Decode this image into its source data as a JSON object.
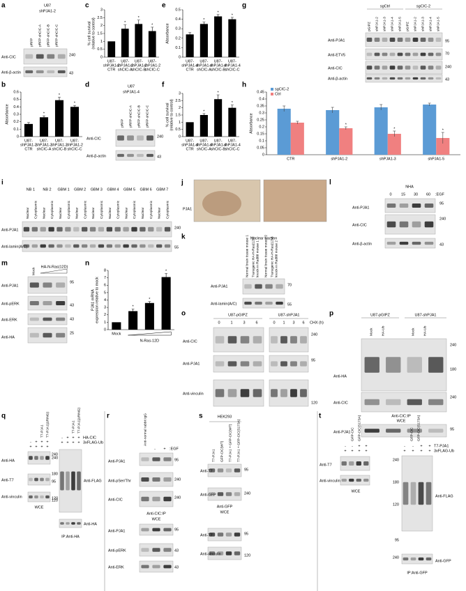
{
  "panels": {
    "a": {
      "labels": [
        "a",
        "U87",
        "shPJA1-2",
        "pRFP",
        "pRFP-shCIC-A",
        "pRFP-shCIC-B",
        "pRFP-shCIC-C",
        "Anti-CIC",
        "240",
        "Anti-β-actin",
        "43"
      ]
    },
    "b": {
      "labels": [
        "b"
      ],
      "chart": {
        "type": "bar",
        "ylabel": [
          "Absorbance"
        ],
        "categories": [
          [
            "U87-",
            "shPJA1-2",
            "CTR"
          ],
          [
            "U87-",
            "shPJA1-2",
            "shCIC-A"
          ],
          [
            "U87-",
            "shPJA1-2",
            "shCIC-B"
          ],
          [
            "U87-",
            "shPJA1-2",
            "shCIC-C"
          ]
        ],
        "values": [
          0.17,
          0.26,
          0.49,
          0.4
        ],
        "errors": [
          0.02,
          0.02,
          0.04,
          0.02
        ],
        "marks": [
          null,
          "*",
          "*",
          "*"
        ],
        "color": "#000000",
        "ylim": [
          0,
          0.6
        ],
        "yticks": [
          0,
          0.1,
          0.2,
          0.3,
          0.4,
          0.5,
          0.6
        ]
      }
    },
    "c": {
      "labels": [
        "c"
      ],
      "chart": {
        "type": "bar",
        "ylabel": [
          "% cell survival",
          "(relative to control)"
        ],
        "categories": [
          [
            "U87-",
            "shPJA1-2",
            "CTR"
          ],
          [
            "U87-",
            "shPJA1-2",
            "shCIC-A"
          ],
          [
            "U87-",
            "shPJA1-2",
            "shCIC-B"
          ],
          [
            "U87-",
            "shPJA1-2",
            "shCIC-C"
          ]
        ],
        "values": [
          1.0,
          1.8,
          2.1,
          1.65
        ],
        "errors": [
          null,
          0.25,
          0.25,
          0.25
        ],
        "marks": [
          null,
          "*",
          "*",
          "*"
        ],
        "color": "#000000",
        "ylim": [
          0,
          3
        ],
        "yticks": [
          0,
          0.5,
          1,
          1.5,
          2,
          2.5,
          3
        ]
      }
    },
    "d": {
      "labels": [
        "d",
        "U87",
        "shPJA1-4",
        "pRFP",
        "pRFP-shCIC-A",
        "pRFP-shCIC-B",
        "pRFP-shCIC-C",
        "Anti-CIC",
        "240",
        "Anti-β-actin",
        "43"
      ]
    },
    "e": {
      "labels": [
        "e"
      ],
      "chart": {
        "type": "bar",
        "ylabel": [
          "Absorbance"
        ],
        "categories": [
          [
            "U87-",
            "shPJA1-4",
            "CTR"
          ],
          [
            "U87-",
            "shPJA1-4",
            "shCIC-A"
          ],
          [
            "U87-",
            "shPJA1-4",
            "shCIC-B"
          ],
          [
            "U87-",
            "shPJA1-4",
            "shCIC-C"
          ]
        ],
        "values": [
          0.24,
          0.35,
          0.43,
          0.4
        ],
        "errors": [
          0.02,
          0.02,
          0.02,
          0.02
        ],
        "marks": [
          null,
          "*",
          "*",
          "*"
        ],
        "color": "#000000",
        "ylim": [
          0,
          0.5
        ],
        "yticks": [
          0,
          0.1,
          0.2,
          0.3,
          0.4,
          0.5
        ]
      }
    },
    "f": {
      "labels": [
        "f"
      ],
      "chart": {
        "type": "bar",
        "ylabel": [
          "% cell survival",
          "(relative to control)"
        ],
        "categories": [
          [
            "U87-",
            "shPJA1-4",
            "CTR"
          ],
          [
            "U87-",
            "shPJA1-4",
            "shCIC-A"
          ],
          [
            "U87-",
            "shPJA1-4",
            "shCIC-B"
          ],
          [
            "U87-",
            "shPJA1-4",
            "shCIC-C"
          ]
        ],
        "values": [
          1.0,
          1.5,
          2.6,
          2.0
        ],
        "errors": [
          null,
          0.1,
          0.3,
          0.2
        ],
        "marks": [
          null,
          "*",
          "*",
          "*"
        ],
        "color": "#000000",
        "ylim": [
          0,
          3
        ],
        "yticks": [
          0,
          0.5,
          1,
          1.5,
          2,
          2.5,
          3
        ]
      }
    },
    "g": {
      "labels": [
        "g",
        "sgCtrl",
        "sgCIC-2",
        "pGIPZ",
        "shPJA1-2",
        "shPJA1-3",
        "shPJA1-4",
        "shPJA1-5",
        "pGIPZ",
        "shPJA1-2",
        "shPJA1-3",
        "shPJA1-4",
        "shPJA1-5",
        "Anti-PJA1",
        "95",
        "Anti-ETV5",
        "70",
        "Anti-CIC",
        "240",
        "Anti-β-actin",
        "43"
      ]
    },
    "h": {
      "labels": [
        "h"
      ],
      "chart": {
        "type": "grouped-bar",
        "ylabel": [
          "Absorbance"
        ],
        "categories": [
          "CTR",
          "shPJA1-2",
          "shPJA1-3",
          "shPJA1-5"
        ],
        "series": [
          {
            "name": "sgCIC-2",
            "color": "#5b9bd5",
            "values": [
              0.33,
              0.32,
              0.34,
              0.36
            ],
            "errors": [
              0.02,
              0.02,
              0.02,
              0.01
            ]
          },
          {
            "name": "Ctrl",
            "color": "#f08080",
            "values": [
              0.23,
              0.19,
              0.15,
              0.12
            ],
            "errors": [
              0.01,
              0.01,
              0.02,
              0.04
            ],
            "marks": [
              null,
              "*",
              "*",
              "*"
            ]
          }
        ],
        "legend": "top-left",
        "ylim": [
          0,
          0.45
        ],
        "yticks": [
          0,
          0.05,
          0.1,
          0.15,
          0.2,
          0.25,
          0.3,
          0.35,
          0.4,
          0.45
        ]
      }
    },
    "i": {
      "labels": [
        "i",
        "NB 1",
        "NB 2",
        "GBM 1",
        "GBM 2",
        "GBM 3",
        "GBM 4",
        "GBM 5",
        "GBM 6",
        "GBM 7",
        "Nuclear",
        "Cytoplasmic",
        "Nuclear",
        "Cytoplasmic",
        "Nuclear",
        "Cytoplasmic",
        "Nuclear",
        "Cytoplasmic",
        "Nuclear",
        "Cytoplasmic",
        "Nuclear",
        "Cytoplasmic",
        "Nuclear",
        "Cytoplasmic",
        "Nuclear",
        "Cytoplasmic",
        "Nuclear",
        "Cytoplasmic",
        "Anti-PJA1",
        "240",
        "Anti-lamin(A/C)",
        "55"
      ]
    },
    "j": {
      "labels": [
        "j",
        "PJA1"
      ]
    },
    "k": {
      "labels": [
        "k",
        "Nuclear fraction",
        "Normal brain tissue mouse 1",
        "Transgenic HA-H-Ras(12V)",
        "knock-in Rad88 mouse 1",
        "Normal brain tissue mouse 2",
        "Transgenic HA-H-Ras(12V)",
        "knock-in Rad88 mouse 2",
        "Anti-PJA1",
        "70",
        "Anti-lamin(A/C)",
        "55"
      ]
    },
    "l": {
      "labels": [
        "l",
        "NHA",
        "0",
        "15",
        "30",
        "60",
        ":EGF",
        "Anti-PJA1",
        "95",
        "Anti-CIC",
        "240",
        "Anti-β-actin",
        "43"
      ]
    },
    "m": {
      "labels": [
        "m",
        "Mock",
        "HA-N-Ras(12D)",
        "Anti-PJA1",
        "95",
        "Anti-pERK",
        "43",
        "Anti-ERK",
        "43",
        "Anti-HA",
        "25"
      ]
    },
    "n": {
      "labels": [
        "n"
      ],
      "chart": {
        "type": "bar",
        "ylabel": [
          "PJA1 mRNA",
          "expression relative to mock"
        ],
        "categories": [
          "Mock",
          null,
          null,
          null
        ],
        "group_label": "N-Ras-12D",
        "values": [
          1.0,
          2.5,
          3.6,
          7.1
        ],
        "errors": [
          null,
          0.3,
          0.2,
          0.5
        ],
        "marks": [
          null,
          "*",
          "*",
          "*"
        ],
        "color": "#000000",
        "ylim": [
          0,
          8
        ],
        "yticks": [
          0,
          1,
          2,
          3,
          4,
          5,
          6,
          7,
          8
        ]
      }
    },
    "o": {
      "labels": [
        "o",
        "U87-pGIPZ",
        "U87-shPJA1",
        "CHX (h)",
        "0",
        "1",
        "3",
        "6",
        "0",
        "1",
        "3",
        "6",
        "Anti-CIC",
        "240",
        "Anti-PJA1",
        "95",
        "Anti-vinculin",
        "120"
      ]
    },
    "p": {
      "labels": [
        "p",
        "U87-pGIPZ",
        "U87-shPJA1",
        "Mock",
        "HA-Ub",
        "Mock",
        "HA-Ub",
        "Anti-HA",
        "240",
        "180",
        "Anti-CIC",
        "240",
        "Anti-CIC:IP",
        "WCE",
        "Anti-PJA1",
        "95"
      ]
    },
    "q": {
      "labels": [
        "q",
        "T7-PJA1",
        "T7-PJA1(ΔRING)",
        "-",
        "+",
        "+",
        "+",
        "+",
        "+",
        "+",
        "+",
        "Anti-HA",
        "240",
        "Anti-T7",
        "95",
        "Anti-vinculin",
        "120",
        "WCE",
        "T7-PJA1",
        "T7-PJA1(ΔRING)",
        "-",
        "+",
        "+",
        "+",
        "+",
        "+",
        "+",
        "+",
        "HA-CIC",
        "3xFLAG-Ub",
        "240",
        "Anti-FLAG",
        "180",
        "120",
        "Anti-HA",
        "IP:Anti-HA"
      ]
    },
    "r": {
      "labels": [
        "r",
        "Anti-normal rabbit IgG",
        "-",
        "+",
        ":EGF",
        "Anti-PJA1",
        "95",
        "Anti-pSer/Thr",
        "240",
        "Anti-CIC",
        "240",
        "Anti-CIC:IP",
        "WCE",
        "Anti-PJA1",
        "95",
        "Anti-pERK",
        "43",
        "Anti-ERK",
        "43"
      ]
    },
    "s": {
      "labels": [
        "s",
        "HEK293",
        "T7-PJA1",
        "GFP-CIC(WT)",
        "T7-PJA1 + GFP-CIC(WT)",
        "T7-PJA1 + GFP-CIC(S173A)",
        "Anti-T7",
        "95",
        "Anti-GFP",
        "240",
        "Anti-GFP",
        "WCE",
        "Anti-T7",
        "95",
        "Anti-vinculin",
        "120"
      ]
    },
    "t": {
      "labels": [
        "t",
        "GFP-CIC",
        "GFP-CIC(S173A)",
        "GFP-CIC",
        "GFP-CIC(S173A)",
        "-",
        "-",
        "+",
        "+",
        "+",
        "+",
        "+",
        "+",
        "-",
        "-",
        "+",
        "+",
        "+",
        "+",
        "+",
        "+",
        "T7-PJA1",
        "3xFLAG-Ub",
        "Anti-T7",
        "Anti-vinculin",
        "WCE",
        "240",
        "Anti-FLAG",
        "180",
        "120",
        "95",
        "240",
        "Anti-GFP",
        "IP:Anti-GFP"
      ]
    }
  }
}
